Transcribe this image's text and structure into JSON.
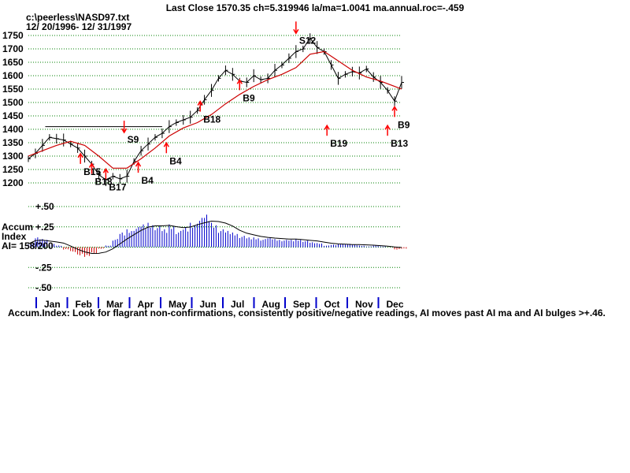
{
  "header": {
    "title": "Last Close 1570.35 ch=5.319946  la/ma=1.0041 ma.annual.roc=-.459",
    "file": "c:\\peerless\\NASD97.txt",
    "date_range": "12/ 20/1996- 12/ 31/1997"
  },
  "footer": {
    "note": "Accum.Index: Look for flagrant non-confirmations, consistently positive/negative readings, AI moves past AI ma and AI bulges >+.46."
  },
  "accum_label": {
    "line1": "Accum",
    "line2": "Index",
    "line3": "AI= 158/200"
  },
  "colors": {
    "price": "#000000",
    "ma": "#cc0000",
    "grid": "#008000",
    "signal": "#ff0000",
    "ai_pos": "#0000cc",
    "ai_neg": "#cc0000",
    "month_tick": "#0000cc"
  },
  "chart_data": [
    {
      "type": "line",
      "title": "Last Close 1570.35 ch=5.319946  la/ma=1.0041 ma.annual.roc=-.459",
      "ylim": [
        1200,
        1750
      ],
      "yticks": [
        "1200",
        "1250",
        "1300",
        "1350",
        "1400",
        "1450",
        "1500",
        "1550",
        "1600",
        "1650",
        "1700",
        "1750"
      ],
      "months": [
        "Jan",
        "Feb",
        "Mar",
        "Apr",
        "May",
        "Jun",
        "Jul",
        "Aug",
        "Sep",
        "Oct",
        "Nov",
        "Dec"
      ],
      "series": [
        {
          "key": "close",
          "x": [
            0,
            5,
            10,
            15,
            20,
            25,
            30,
            35,
            40,
            45,
            50,
            55,
            60,
            65,
            70,
            75,
            80,
            85,
            90,
            95,
            100,
            105,
            110,
            115,
            120,
            125,
            130,
            135,
            140,
            145,
            150,
            155,
            160,
            165,
            170,
            175,
            180,
            185,
            190,
            195,
            200,
            205,
            210,
            215,
            220,
            225,
            230,
            235,
            240,
            245,
            250,
            255,
            260,
            265
          ],
          "values": [
            1290,
            1310,
            1340,
            1370,
            1365,
            1360,
            1345,
            1330,
            1300,
            1270,
            1230,
            1212,
            1225,
            1215,
            1225,
            1280,
            1320,
            1345,
            1370,
            1385,
            1410,
            1425,
            1435,
            1445,
            1470,
            1510,
            1545,
            1590,
            1620,
            1605,
            1580,
            1575,
            1600,
            1585,
            1590,
            1620,
            1640,
            1665,
            1690,
            1700,
            1740,
            1705,
            1690,
            1640,
            1590,
            1605,
            1615,
            1610,
            1625,
            1595,
            1575,
            1545,
            1505,
            1575
          ]
        },
        {
          "key": "ma",
          "x": [
            0,
            10,
            20,
            30,
            40,
            50,
            60,
            70,
            80,
            90,
            100,
            110,
            120,
            130,
            140,
            150,
            160,
            170,
            180,
            190,
            200,
            210,
            220,
            230,
            240,
            250,
            260,
            265
          ],
          "values": [
            1300,
            1320,
            1340,
            1355,
            1340,
            1300,
            1255,
            1255,
            1290,
            1330,
            1375,
            1405,
            1425,
            1455,
            1495,
            1530,
            1560,
            1585,
            1605,
            1630,
            1680,
            1690,
            1655,
            1620,
            1595,
            1580,
            1560,
            1550
          ]
        }
      ],
      "annotations": [
        {
          "text": "B15",
          "x": 37,
          "y": 1265
        },
        {
          "text": "B18",
          "x": 45,
          "y": 1228
        },
        {
          "text": "B17",
          "x": 55,
          "y": 1208
        },
        {
          "text": "S9",
          "x": 68,
          "y": 1385
        },
        {
          "text": "B4",
          "x": 78,
          "y": 1232
        },
        {
          "text": "B4",
          "x": 98,
          "y": 1305
        },
        {
          "text": "B18",
          "x": 122,
          "y": 1460
        },
        {
          "text": "B9",
          "x": 150,
          "y": 1540
        },
        {
          "text": "S12",
          "x": 190,
          "y": 1755
        },
        {
          "text": "B19",
          "x": 212,
          "y": 1370
        },
        {
          "text": "B9",
          "x": 260,
          "y": 1440
        },
        {
          "text": "B13",
          "x": 255,
          "y": 1370
        }
      ],
      "reference_line": {
        "y": 1410,
        "x_from": 12,
        "x_to": 95
      }
    },
    {
      "type": "bar",
      "ylabel": "Accum Index",
      "ylim": [
        -0.5,
        0.5
      ],
      "yticks": [
        "+.50",
        "+.25",
        "0",
        "-.25",
        "-.50"
      ],
      "x": [
        0,
        5,
        10,
        15,
        20,
        25,
        30,
        35,
        40,
        45,
        50,
        55,
        60,
        65,
        70,
        75,
        80,
        85,
        90,
        95,
        100,
        105,
        110,
        115,
        120,
        125,
        130,
        135,
        140,
        145,
        150,
        155,
        160,
        165,
        170,
        175,
        180,
        185,
        190,
        195,
        200,
        205,
        210,
        215,
        220,
        225,
        230,
        235,
        240,
        245,
        250,
        255,
        260,
        265
      ],
      "values": [
        0.04,
        0.12,
        0.1,
        0.04,
        0.02,
        -0.03,
        -0.06,
        -0.1,
        -0.12,
        -0.08,
        -0.02,
        0.02,
        0.1,
        0.18,
        0.22,
        0.25,
        0.28,
        0.3,
        0.26,
        0.22,
        0.28,
        0.2,
        0.24,
        0.3,
        0.36,
        0.4,
        0.3,
        0.22,
        0.2,
        0.18,
        0.14,
        0.12,
        0.12,
        0.1,
        0.12,
        0.1,
        0.09,
        0.09,
        0.1,
        0.08,
        0.06,
        0.05,
        0.02,
        0.03,
        0.04,
        0.04,
        0.03,
        0.02,
        0.01,
        0.02,
        0.01,
        0.0,
        -0.03,
        -0.02
      ]
    }
  ]
}
